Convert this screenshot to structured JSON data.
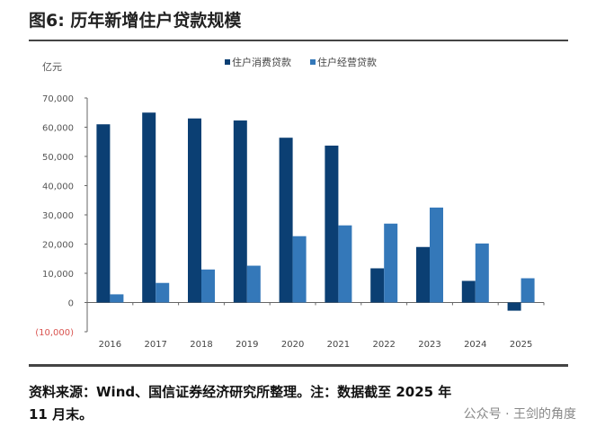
{
  "title": "图6: 历年新增住户贷款规模",
  "source_line1": "资料来源：Wind、国信证券经济研究所整理。注：数据截至 2025 年",
  "source_line2": "11 月末。",
  "watermark": "公众号 · 王剑的角度",
  "chart_data": {
    "type": "bar",
    "unit_label": "亿元",
    "categories": [
      "2016",
      "2017",
      "2018",
      "2019",
      "2020",
      "2021",
      "2022",
      "2023",
      "2024",
      "2025"
    ],
    "series": [
      {
        "name": "住户消费贷款",
        "color": "#0b3f73",
        "values": [
          61000,
          65000,
          63000,
          62300,
          56400,
          53700,
          11700,
          19000,
          7400,
          -2800
        ]
      },
      {
        "name": "住户经营贷款",
        "color": "#3478b9",
        "values": [
          2800,
          6700,
          11300,
          12600,
          22700,
          26400,
          27000,
          32500,
          20200,
          8300
        ]
      }
    ],
    "ylim": [
      -10000,
      70000
    ],
    "yticks": [
      {
        "v": 70000,
        "label": "70,000"
      },
      {
        "v": 60000,
        "label": "60,000"
      },
      {
        "v": 50000,
        "label": "50,000"
      },
      {
        "v": 40000,
        "label": "40,000"
      },
      {
        "v": 30000,
        "label": "30,000"
      },
      {
        "v": 20000,
        "label": "20,000"
      },
      {
        "v": 10000,
        "label": "10,000"
      },
      {
        "v": 0,
        "label": "0"
      },
      {
        "v": -10000,
        "label": "(10,000)",
        "color": "#d9534f"
      }
    ],
    "legend": "top-right",
    "grid": false
  }
}
